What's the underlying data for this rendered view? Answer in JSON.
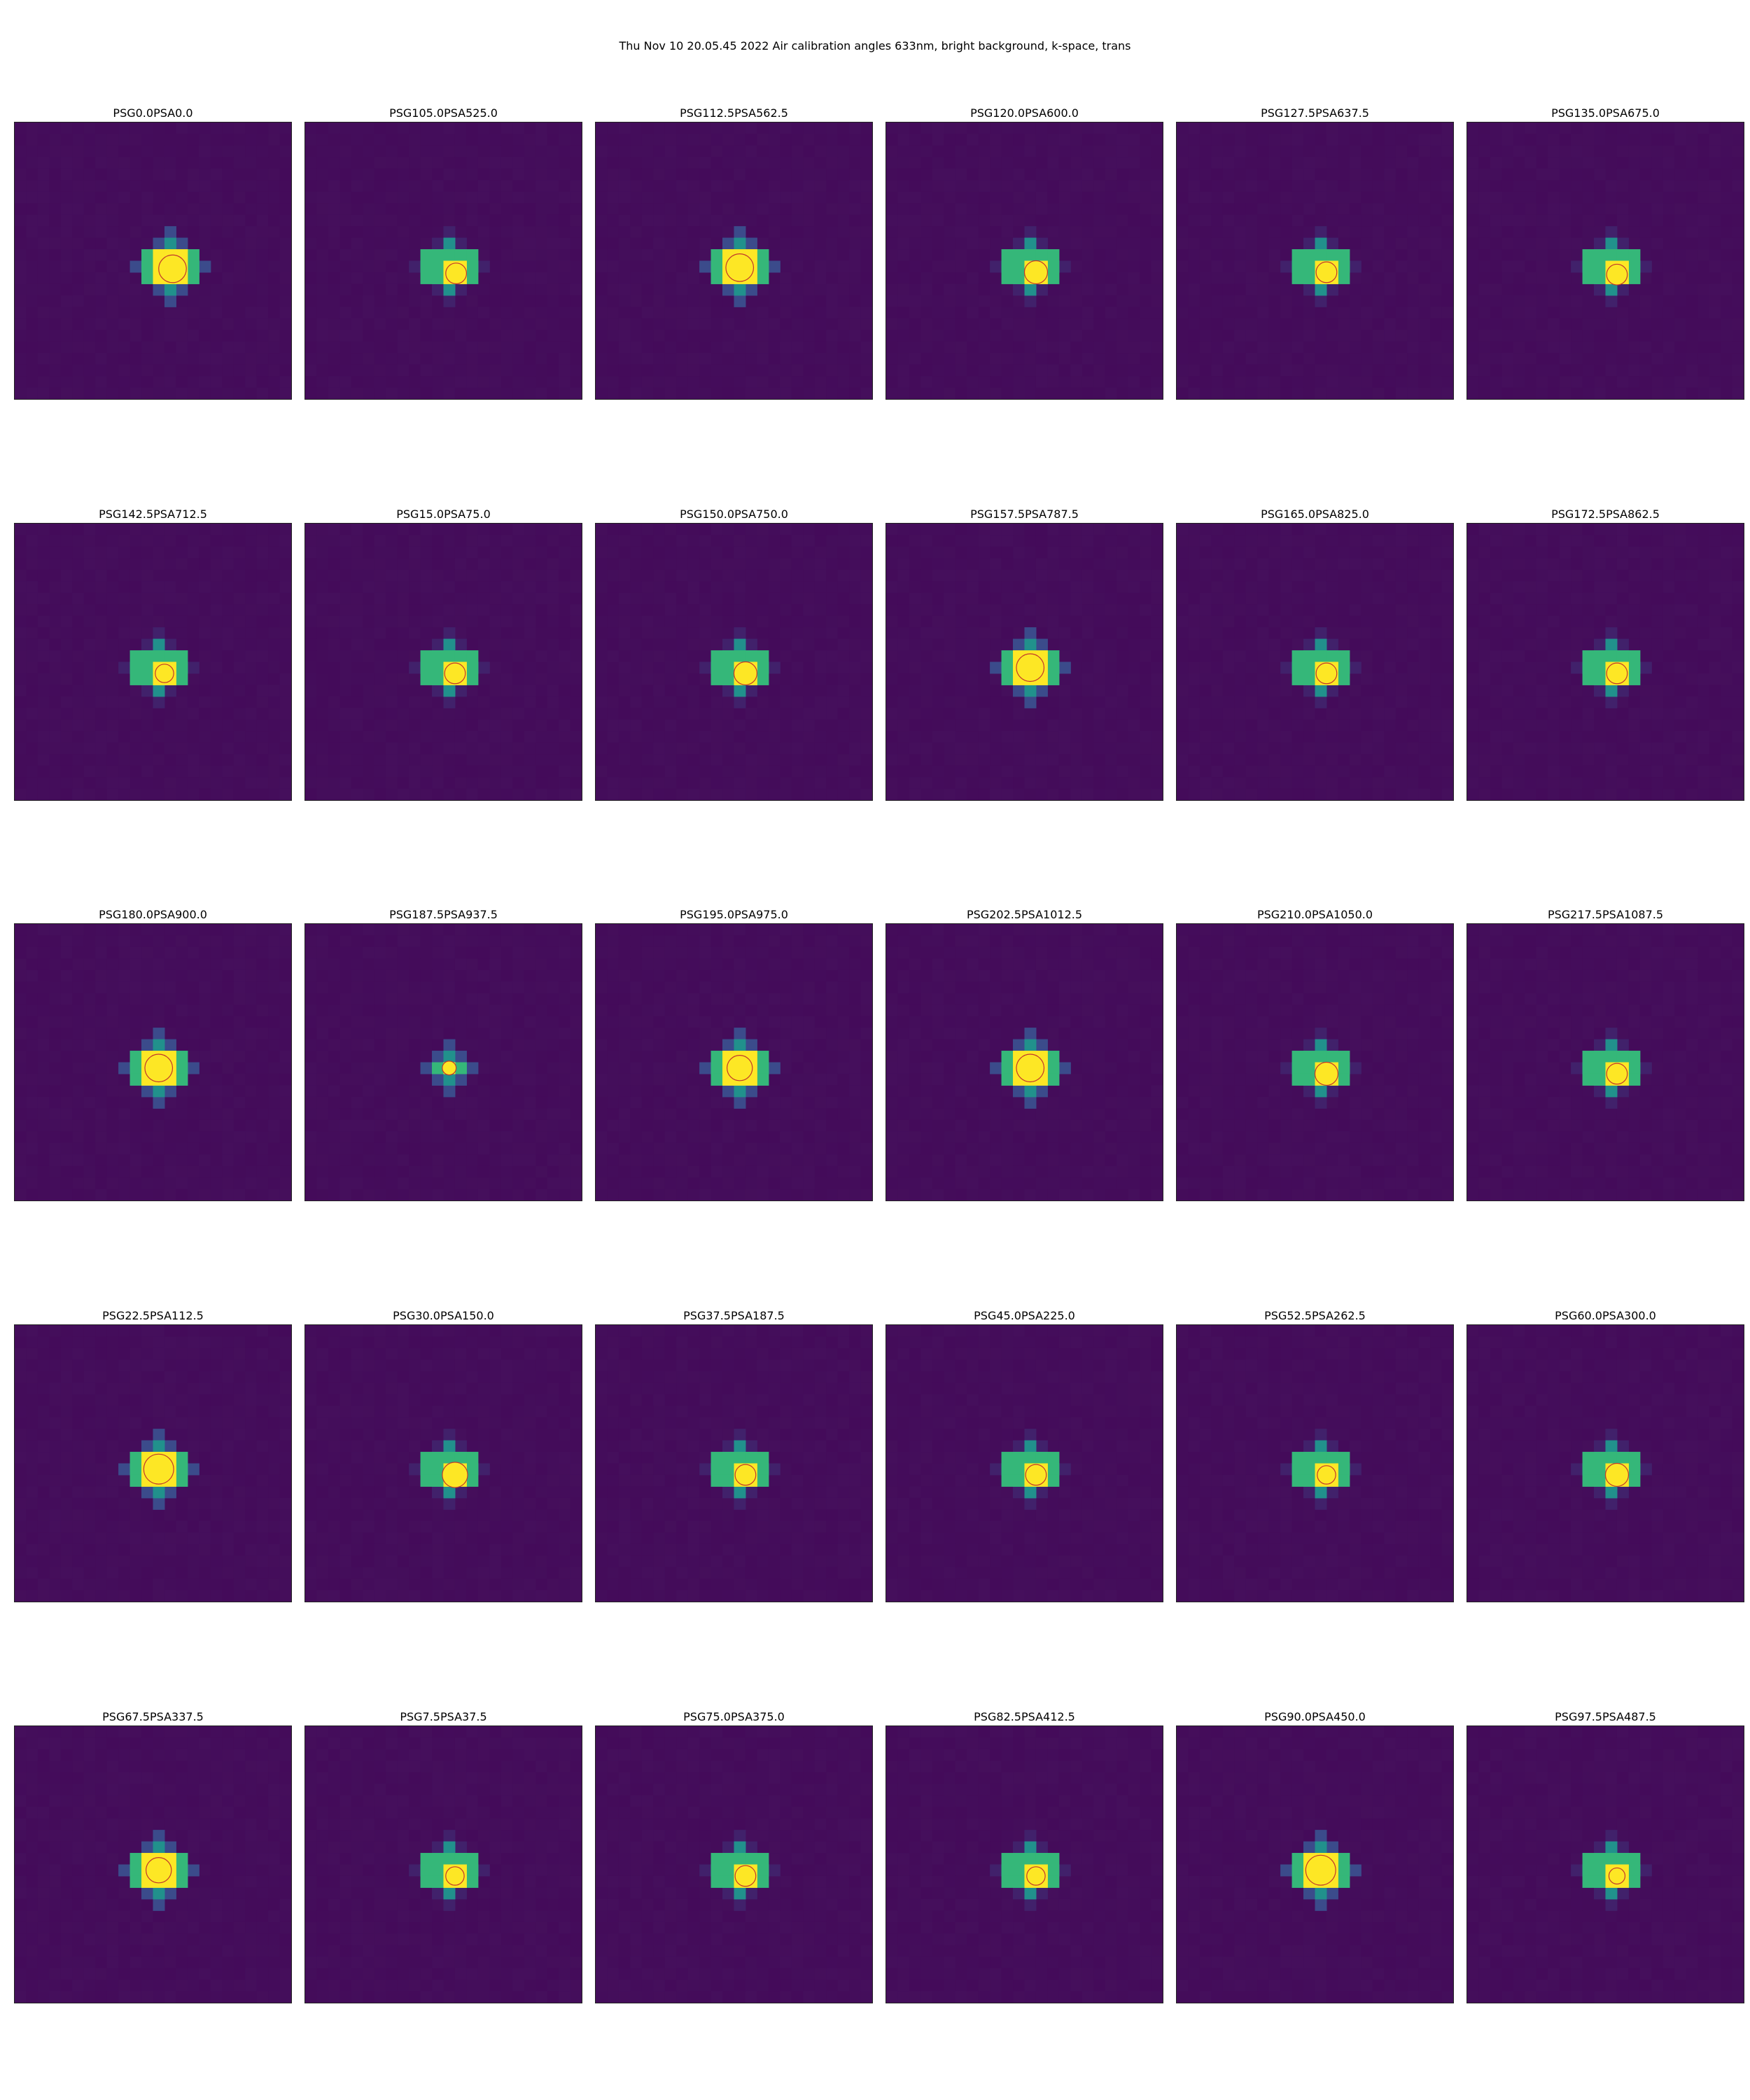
{
  "figure": {
    "title": "Thu Nov 10 20.05.45 2022 Air calibration angles 633nm, bright background, k-space, trans"
  },
  "colors": {
    "background_purple": "#440b5a",
    "dark_purple": "#46175f",
    "indigo": "#3b4b8b",
    "blue": "#2e6e8e",
    "teal": "#21918c",
    "green": "#35b779",
    "yellow": "#fde725",
    "circle_stroke": "#c0392b"
  },
  "chart_data": {
    "type": "heatmap",
    "layout": {
      "rows": 5,
      "cols": 6
    },
    "colormap": "viridis",
    "panels": [
      {
        "title": "PSG0.0PSA0.0",
        "spot_dx": 1,
        "spot_dy": 0,
        "spot_size": 3,
        "circle_r": 1.2,
        "circle_dx": 0.2,
        "circle_dy": 0.2
      },
      {
        "title": "PSG105.0PSA525.0",
        "spot_dx": 0,
        "spot_dy": 0,
        "spot_size": 2,
        "circle_r": 0.9,
        "circle_dx": 0.1,
        "circle_dy": 0.1
      },
      {
        "title": "PSG112.5PSA562.5",
        "spot_dx": 0,
        "spot_dy": 0,
        "spot_size": 3,
        "circle_r": 1.2,
        "circle_dx": 0,
        "circle_dy": 0.1
      },
      {
        "title": "PSG120.0PSA600.0",
        "spot_dx": 0,
        "spot_dy": 0,
        "spot_size": 2,
        "circle_r": 1.0,
        "circle_dx": 0,
        "circle_dy": 0
      },
      {
        "title": "PSG127.5PSA637.5",
        "spot_dx": 0,
        "spot_dy": 0,
        "spot_size": 2,
        "circle_r": 0.9,
        "circle_dx": 0,
        "circle_dy": 0
      },
      {
        "title": "PSG135.0PSA675.0",
        "spot_dx": 0,
        "spot_dy": 0,
        "spot_size": 2,
        "circle_r": 0.9,
        "circle_dx": 0,
        "circle_dy": 0.2
      },
      {
        "title": "PSG142.5PSA712.5",
        "spot_dx": 0,
        "spot_dy": 0,
        "spot_size": 2,
        "circle_r": 0.8,
        "circle_dx": 0,
        "circle_dy": 0
      },
      {
        "title": "PSG15.0PSA75.0",
        "spot_dx": 0,
        "spot_dy": 0,
        "spot_size": 2,
        "circle_r": 0.9,
        "circle_dx": 0,
        "circle_dy": 0
      },
      {
        "title": "PSG150.0PSA750.0",
        "spot_dx": 0,
        "spot_dy": 0,
        "spot_size": 2,
        "circle_r": 1.0,
        "circle_dx": 0,
        "circle_dy": 0
      },
      {
        "title": "PSG157.5PSA787.5",
        "spot_dx": 0,
        "spot_dy": 0,
        "spot_size": 3,
        "circle_r": 1.2,
        "circle_dx": 0,
        "circle_dy": 0
      },
      {
        "title": "PSG165.0PSA825.0",
        "spot_dx": 0,
        "spot_dy": 0,
        "spot_size": 2,
        "circle_r": 0.9,
        "circle_dx": 0,
        "circle_dy": 0
      },
      {
        "title": "PSG172.5PSA862.5",
        "spot_dx": 0,
        "spot_dy": 0,
        "spot_size": 2,
        "circle_r": 0.9,
        "circle_dx": 0,
        "circle_dy": 0
      },
      {
        "title": "PSG180.0PSA900.0",
        "spot_dx": 0,
        "spot_dy": 0,
        "spot_size": 3,
        "circle_r": 1.2,
        "circle_dx": 0,
        "circle_dy": 0
      },
      {
        "title": "PSG187.5PSA937.5",
        "spot_dx": 0,
        "spot_dy": 0,
        "spot_size": 1,
        "circle_r": 0.6,
        "circle_dx": 0,
        "circle_dy": 0
      },
      {
        "title": "PSG195.0PSA975.0",
        "spot_dx": 0,
        "spot_dy": 0,
        "spot_size": 3,
        "circle_r": 1.1,
        "circle_dx": 0,
        "circle_dy": 0
      },
      {
        "title": "PSG202.5PSA1012.5",
        "spot_dx": 0,
        "spot_dy": 0,
        "spot_size": 3,
        "circle_r": 1.2,
        "circle_dx": 0,
        "circle_dy": 0
      },
      {
        "title": "PSG210.0PSA1050.0",
        "spot_dx": 0,
        "spot_dy": 0,
        "spot_size": 2,
        "circle_r": 1.0,
        "circle_dx": 0,
        "circle_dy": 0
      },
      {
        "title": "PSG217.5PSA1087.5",
        "spot_dx": 0,
        "spot_dy": 0,
        "spot_size": 2,
        "circle_r": 0.9,
        "circle_dx": 0,
        "circle_dy": 0
      },
      {
        "title": "PSG22.5PSA112.5",
        "spot_dx": 0,
        "spot_dy": 0,
        "spot_size": 3,
        "circle_r": 1.3,
        "circle_dx": 0,
        "circle_dy": 0
      },
      {
        "title": "PSG30.0PSA150.0",
        "spot_dx": 0,
        "spot_dy": 0,
        "spot_size": 2,
        "circle_r": 1.1,
        "circle_dx": 0,
        "circle_dy": 0
      },
      {
        "title": "PSG37.5PSA187.5",
        "spot_dx": 0,
        "spot_dy": 0,
        "spot_size": 2,
        "circle_r": 0.9,
        "circle_dx": 0,
        "circle_dy": 0
      },
      {
        "title": "PSG45.0PSA225.0",
        "spot_dx": 0,
        "spot_dy": 0,
        "spot_size": 2,
        "circle_r": 0.9,
        "circle_dx": 0,
        "circle_dy": 0
      },
      {
        "title": "PSG52.5PSA262.5",
        "spot_dx": 0,
        "spot_dy": 0,
        "spot_size": 2,
        "circle_r": 0.8,
        "circle_dx": 0,
        "circle_dy": 0
      },
      {
        "title": "PSG60.0PSA300.0",
        "spot_dx": 0,
        "spot_dy": 0,
        "spot_size": 2,
        "circle_r": 1.0,
        "circle_dx": 0,
        "circle_dy": 0
      },
      {
        "title": "PSG67.5PSA337.5",
        "spot_dx": 0,
        "spot_dy": 0,
        "spot_size": 3,
        "circle_r": 1.1,
        "circle_dx": 0,
        "circle_dy": 0
      },
      {
        "title": "PSG7.5PSA37.5",
        "spot_dx": 0,
        "spot_dy": 0,
        "spot_size": 2,
        "circle_r": 0.8,
        "circle_dx": 0,
        "circle_dy": 0
      },
      {
        "title": "PSG75.0PSA375.0",
        "spot_dx": 0,
        "spot_dy": 0,
        "spot_size": 2,
        "circle_r": 0.9,
        "circle_dx": 0,
        "circle_dy": 0
      },
      {
        "title": "PSG82.5PSA412.5",
        "spot_dx": 0,
        "spot_dy": 0,
        "spot_size": 2,
        "circle_r": 0.8,
        "circle_dx": 0,
        "circle_dy": 0
      },
      {
        "title": "PSG90.0PSA450.0",
        "spot_dx": 0,
        "spot_dy": 0,
        "spot_size": 3,
        "circle_r": 1.3,
        "circle_dx": 0,
        "circle_dy": 0
      },
      {
        "title": "PSG97.5PSA487.5",
        "spot_dx": 0,
        "spot_dy": 0,
        "spot_size": 2,
        "circle_r": 0.7,
        "circle_dx": 0,
        "circle_dy": 0
      }
    ]
  }
}
